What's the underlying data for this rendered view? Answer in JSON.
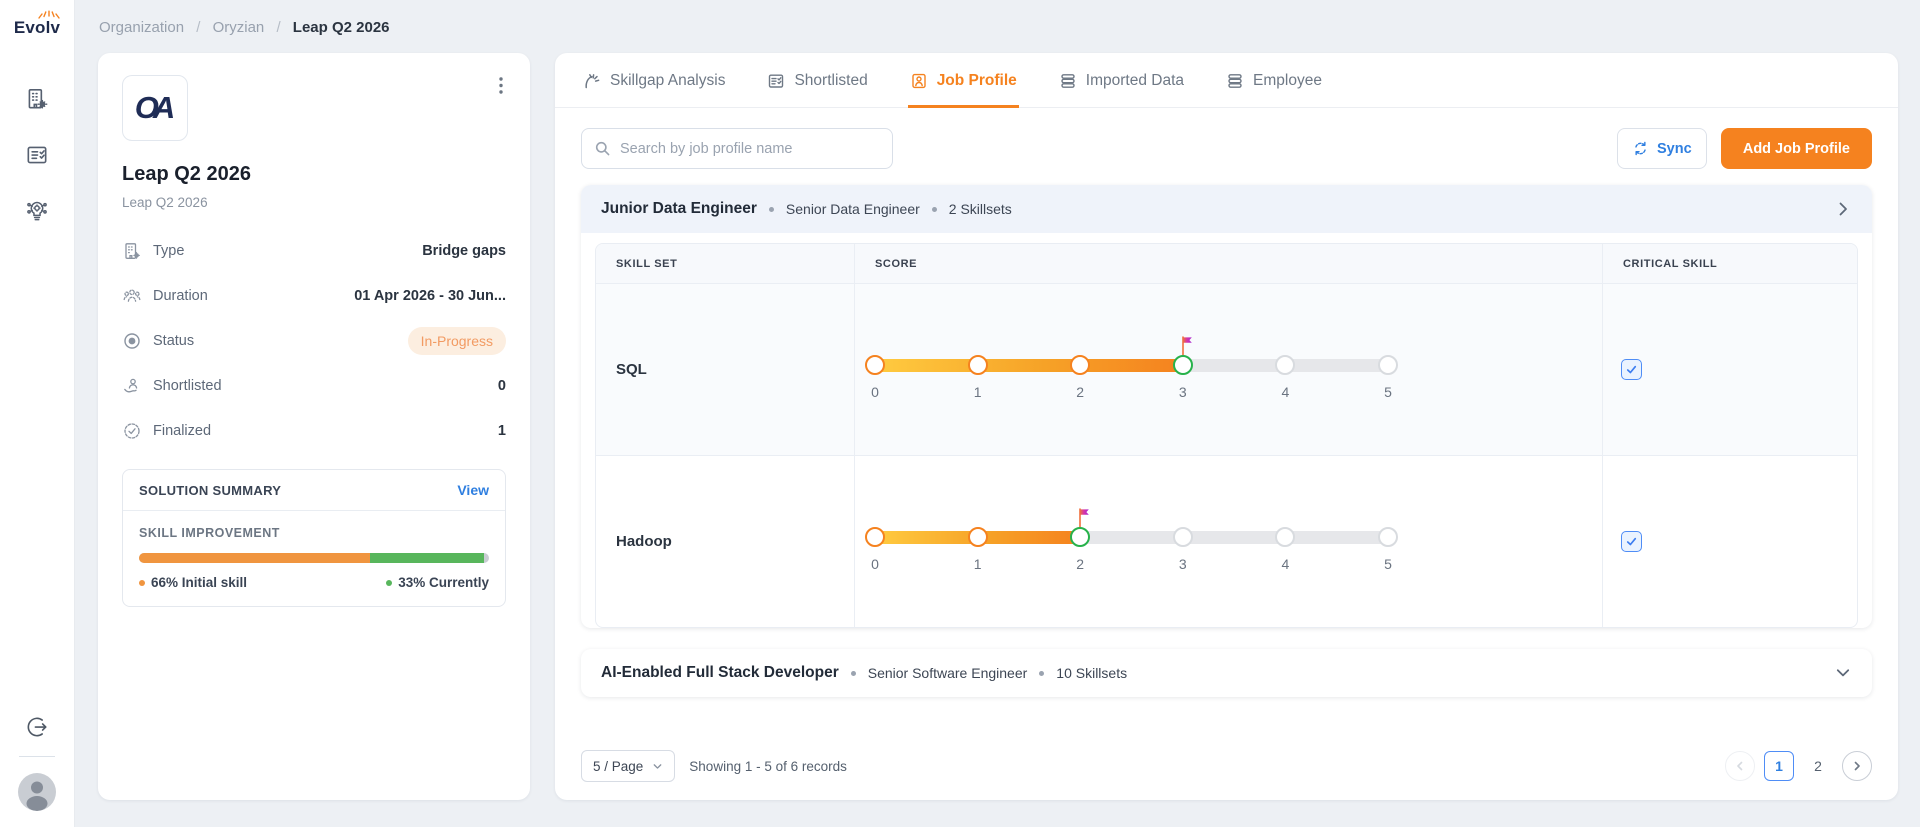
{
  "brand": {
    "name": "Evolv"
  },
  "breadcrumb": {
    "items": [
      "Organization",
      "Oryzian",
      "Leap Q2 2026"
    ],
    "separator": "/"
  },
  "sidebar": {
    "nav_icons": [
      "org-building-icon",
      "checklist-icon",
      "ai-solutions-icon"
    ],
    "logout_icon": "logout-icon",
    "avatar": "user-avatar"
  },
  "project_card": {
    "logo_text": "OA",
    "title": "Leap Q2 2026",
    "subtitle": "Leap Q2 2026",
    "details": [
      {
        "icon": "type-building-icon",
        "label": "Type",
        "value": "Bridge gaps",
        "badge": false
      },
      {
        "icon": "duration-people-icon",
        "label": "Duration",
        "value": "01 Apr 2026 - 30 Jun...",
        "badge": false
      },
      {
        "icon": "status-circle-icon",
        "label": "Status",
        "value": "In-Progress",
        "badge": true
      },
      {
        "icon": "shortlisted-hand-icon",
        "label": "Shortlisted",
        "value": "0",
        "badge": false
      },
      {
        "icon": "finalized-rosette-icon",
        "label": "Finalized",
        "value": "1",
        "badge": false
      }
    ],
    "solution_summary": {
      "title": "SOLUTION SUMMARY",
      "view_label": "View",
      "section_title": "SKILL IMPROVEMENT",
      "initial_pct": 66,
      "current_pct": 33,
      "initial_label": "66% Initial skill",
      "current_label": "33% Currently",
      "initial_color": "#F0953F",
      "current_color": "#58B65C"
    }
  },
  "tabs": [
    {
      "label": "Skillgap Analysis",
      "icon": "skillgap-icon",
      "active": false
    },
    {
      "label": "Shortlisted",
      "icon": "shortlist-board-icon",
      "active": false
    },
    {
      "label": "Job Profile",
      "icon": "job-profile-person-icon",
      "active": true
    },
    {
      "label": "Imported Data",
      "icon": "database-icon",
      "active": false
    },
    {
      "label": "Employee",
      "icon": "database-icon",
      "active": false
    }
  ],
  "toolbar": {
    "search_placeholder": "Search by job profile name",
    "sync_label": "Sync",
    "add_label": "Add Job Profile"
  },
  "job_profiles": [
    {
      "name": "Junior Data Engineer",
      "mapped_to": "Senior Data Engineer",
      "skillsets": "2 Skillsets",
      "expanded": true,
      "table": {
        "columns": [
          "SKILL SET",
          "SCORE",
          "CRITICAL SKILL"
        ],
        "scale": [
          0,
          1,
          2,
          3,
          4,
          5
        ],
        "max": 5,
        "rows": [
          {
            "skill": "SQL",
            "score": 3,
            "flag": 3,
            "critical": true
          },
          {
            "skill": "Hadoop",
            "score": 2,
            "flag": 2,
            "critical": true
          }
        ]
      }
    },
    {
      "name": "AI-Enabled Full Stack Developer",
      "mapped_to": "Senior Software Engineer",
      "skillsets": "10 Skillsets",
      "expanded": false
    }
  ],
  "pagination": {
    "page_size_label": "5 / Page",
    "showing_text": "Showing 1 - 5 of 6 records",
    "pages": [
      "1",
      "2"
    ],
    "current_page": "1"
  },
  "colors": {
    "accent_orange": "#F5821F",
    "link_blue": "#2F7FE0",
    "success_green": "#27B24B",
    "flag_magenta": "#C92FB6",
    "badge_bg": "#FCEEE0",
    "badge_text": "#F29B63",
    "slider_gradient_start": "#FFCB40",
    "slider_track": "#E6E7EA"
  }
}
